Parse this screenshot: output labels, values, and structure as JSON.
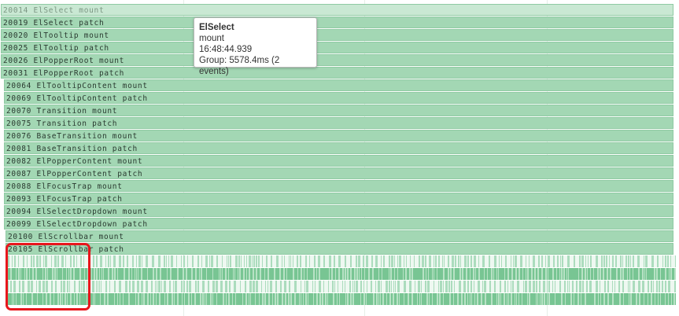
{
  "timeline": {
    "rows": [
      {
        "label": "20014 ElSelect mount"
      },
      {
        "label": "20019 ElSelect patch"
      },
      {
        "label": "20020 ElTooltip mount"
      },
      {
        "label": "20025 ElTooltip patch"
      },
      {
        "label": "20026 ElPopperRoot mount"
      },
      {
        "label": "20031 ElPopperRoot patch"
      },
      {
        "label": "20064 ElTooltipContent mount"
      },
      {
        "label": "20069 ElTooltipContent patch"
      },
      {
        "label": "20070 Transition mount"
      },
      {
        "label": "20075 Transition patch"
      },
      {
        "label": "20076 BaseTransition mount"
      },
      {
        "label": "20081 BaseTransition patch"
      },
      {
        "label": "20082 ElPopperContent mount"
      },
      {
        "label": "20087 ElPopperContent patch"
      },
      {
        "label": "20088 ElFocusTrap mount"
      },
      {
        "label": "20093 ElFocusTrap patch"
      },
      {
        "label": "20094 ElSelectDropdown mount"
      },
      {
        "label": "20099 ElSelectDropdown patch"
      },
      {
        "label": "20100 ElScrollbar mount"
      },
      {
        "label": "20105 ElScrollbar patch"
      }
    ],
    "barcode_rows": 4
  },
  "tooltip": {
    "title": "ElSelect",
    "event_type": "mount",
    "time": "16:48:44.939",
    "group": "Group: 5578.4ms (2 events)"
  },
  "colors": {
    "event_bar": "#a3d7b4",
    "event_bar_border": "#8fcaa3",
    "barcode_dark": "#6cc08a",
    "highlight": "#e8161c"
  },
  "highlight": {
    "label": "",
    "style": "red-rounded-box"
  }
}
